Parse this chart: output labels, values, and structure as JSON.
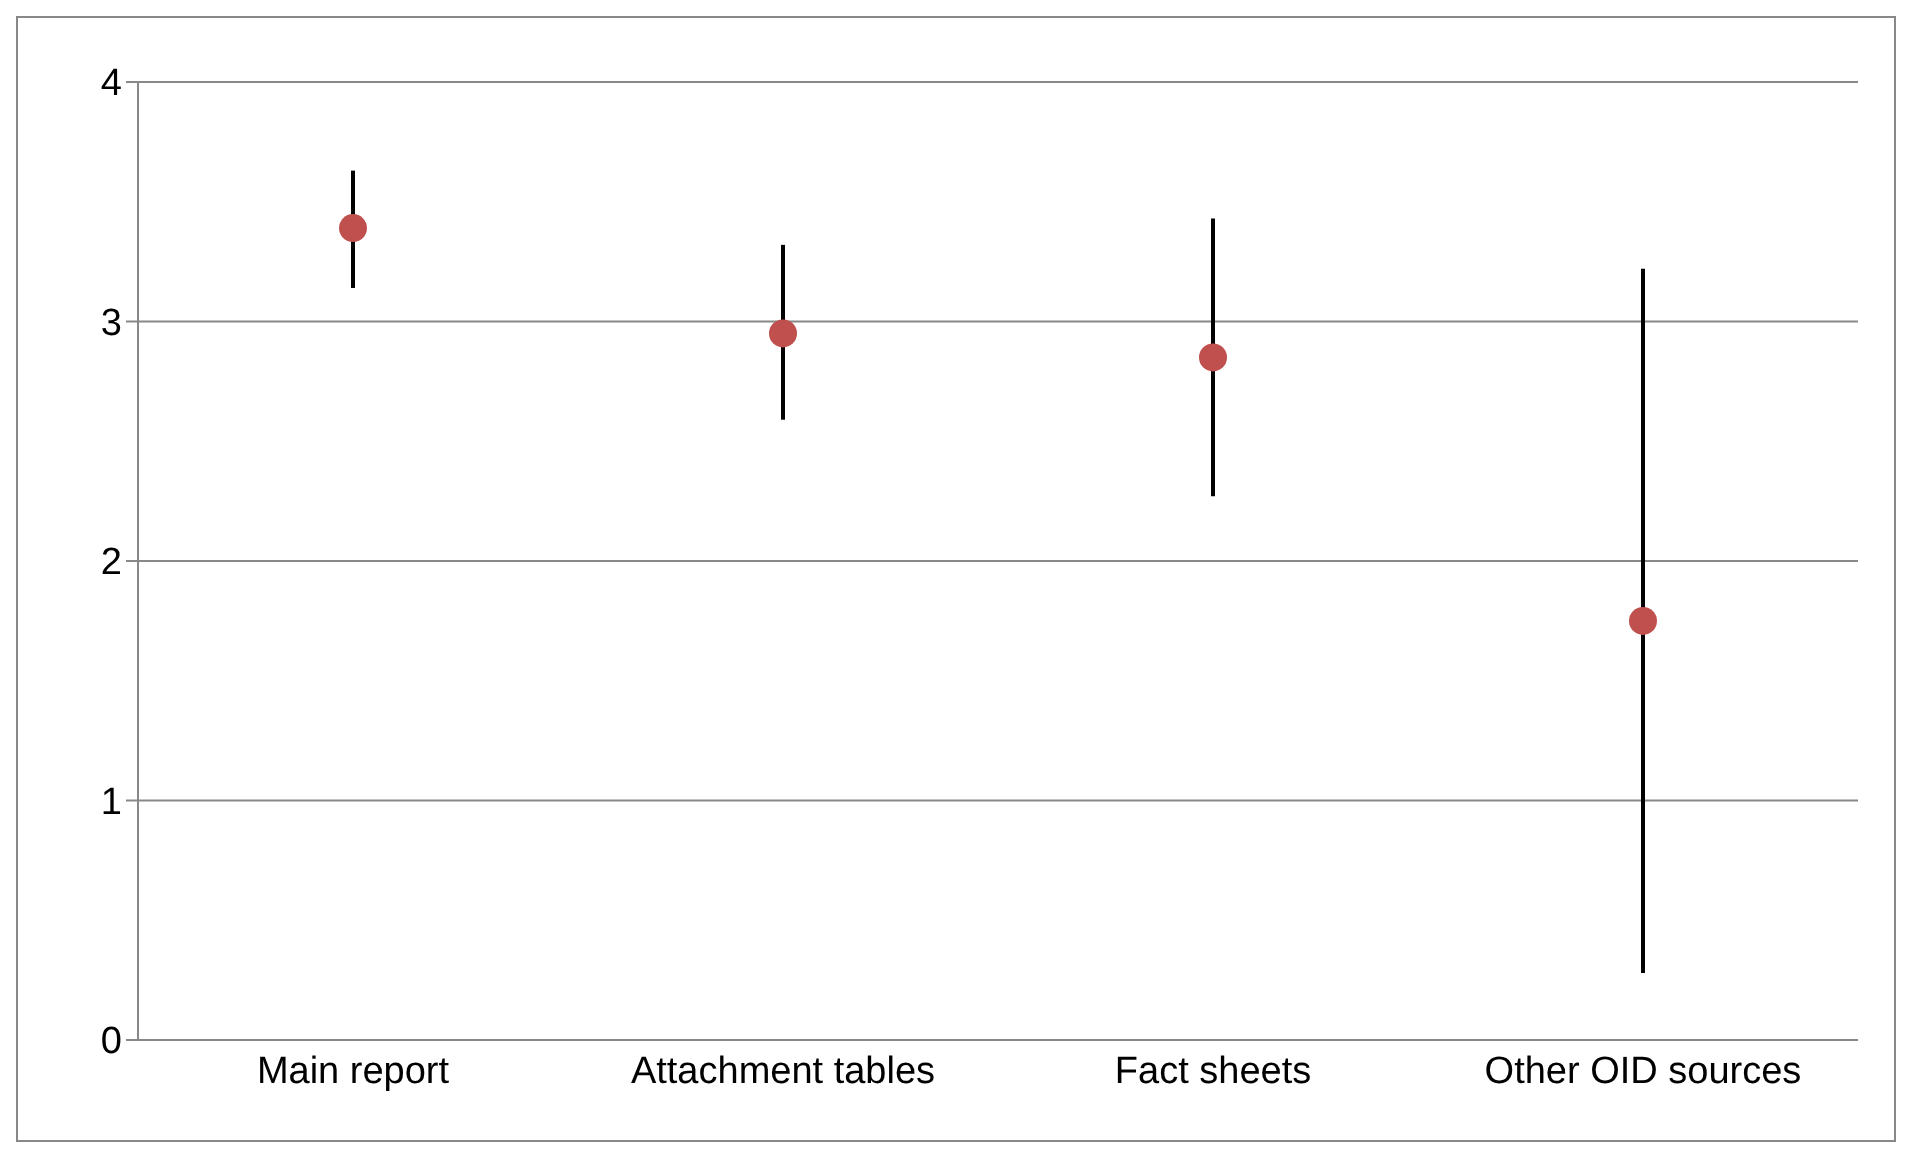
{
  "chart_data": {
    "type": "scatter",
    "categories": [
      "Main report",
      "Attachment tables",
      "Fact sheets",
      "Other OID sources"
    ],
    "series": [
      {
        "color": "#c0504d",
        "values": [
          3.39,
          2.95,
          2.85,
          1.75
        ],
        "errors": [
          [
            3.14,
            3.63
          ],
          [
            2.59,
            3.32
          ],
          [
            2.27,
            3.43
          ],
          [
            0.28,
            3.22
          ]
        ]
      }
    ],
    "ylim": [
      0,
      4
    ],
    "yticks": [
      0,
      1,
      2,
      3,
      4
    ],
    "grid": "y",
    "marker": "circle",
    "legend": false
  }
}
